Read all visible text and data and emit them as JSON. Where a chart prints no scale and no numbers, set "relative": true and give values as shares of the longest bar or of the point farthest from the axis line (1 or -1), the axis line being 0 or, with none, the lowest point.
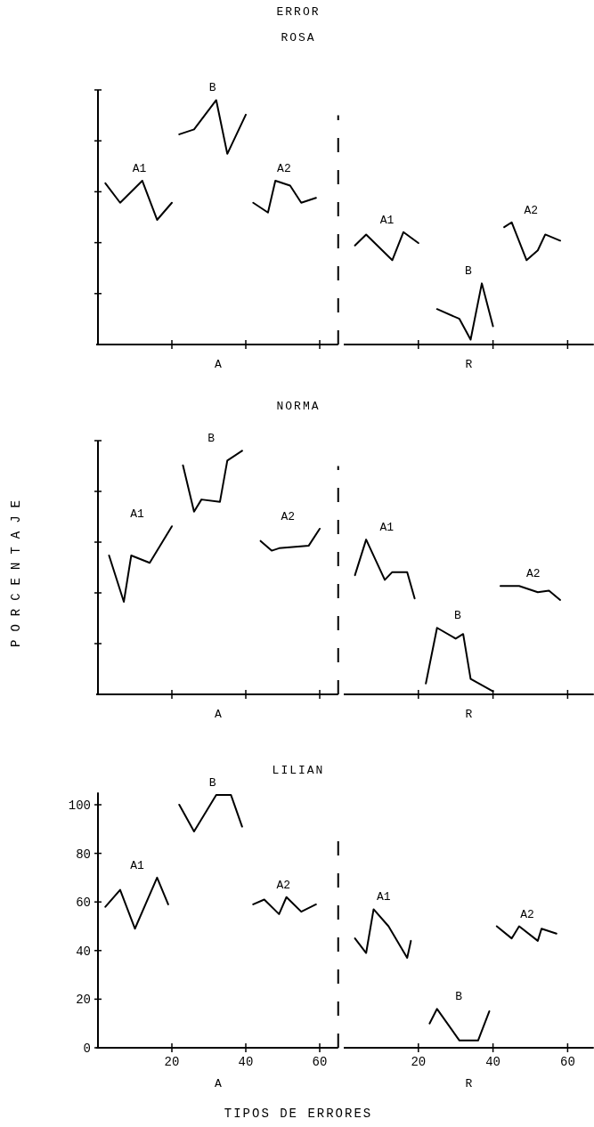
{
  "chart_data": [
    {
      "type": "line",
      "title": "ERROR",
      "subtitle": "ROSA",
      "xlabel": "A",
      "relative": true,
      "xlim": [
        0,
        65
      ],
      "xticks": [
        20,
        40,
        60
      ],
      "tick_labels": false,
      "marker": "none",
      "line_style": "solid",
      "series": [
        {
          "name": "A1",
          "color": "#000000",
          "x": [
            2,
            6,
            12,
            16,
            20
          ],
          "values": [
            0.66,
            0.58,
            0.67,
            0.51,
            0.58
          ]
        },
        {
          "name": "B",
          "color": "#000000",
          "x": [
            22,
            26,
            32,
            35,
            40
          ],
          "values": [
            0.86,
            0.88,
            1,
            0.78,
            0.94
          ]
        },
        {
          "name": "A2",
          "color": "#000000",
          "x": [
            42,
            46,
            48,
            52,
            55,
            59
          ],
          "values": [
            0.58,
            0.54,
            0.67,
            0.65,
            0.58,
            0.6
          ]
        }
      ]
    },
    {
      "type": "line",
      "xlabel": "R",
      "relative": true,
      "xlim": [
        0,
        67
      ],
      "xticks": [
        20,
        40,
        60
      ],
      "tick_labels": false,
      "marker": "none",
      "line_style": "solid",
      "series": [
        {
          "name": "A1",
          "color": "#000000",
          "x": [
            3,
            6,
            13,
            16,
            20
          ],
          "values": [
            0.81,
            0.9,
            0.69,
            0.92,
            0.83
          ]
        },
        {
          "name": "B",
          "color": "#000000",
          "x": [
            25,
            31,
            34,
            37,
            40
          ],
          "values": [
            0.29,
            0.21,
            0.04,
            0.5,
            0.15
          ]
        },
        {
          "name": "A2",
          "color": "#000000",
          "x": [
            43,
            45,
            49,
            52,
            54,
            58
          ],
          "values": [
            0.96,
            1,
            0.69,
            0.77,
            0.9,
            0.85
          ]
        }
      ]
    },
    {
      "type": "line",
      "title": "NORMA",
      "xlabel": "A",
      "relative": true,
      "xlim": [
        0,
        65
      ],
      "xticks": [
        20,
        40,
        60
      ],
      "tick_labels": false,
      "marker": "none",
      "line_style": "solid",
      "series": [
        {
          "name": "A1",
          "color": "#000000",
          "x": [
            3,
            7,
            9,
            14,
            20
          ],
          "values": [
            0.57,
            0.38,
            0.57,
            0.54,
            0.69
          ]
        },
        {
          "name": "B",
          "color": "#000000",
          "x": [
            23,
            26,
            28,
            33,
            35,
            39
          ],
          "values": [
            0.94,
            0.75,
            0.8,
            0.79,
            0.96,
            1
          ]
        },
        {
          "name": "A2",
          "color": "#000000",
          "x": [
            44,
            47,
            49,
            57,
            60
          ],
          "values": [
            0.63,
            0.59,
            0.6,
            0.61,
            0.68
          ]
        }
      ]
    },
    {
      "type": "line",
      "xlabel": "R",
      "relative": true,
      "xlim": [
        0,
        67
      ],
      "xticks": [
        20,
        40,
        60
      ],
      "tick_labels": false,
      "marker": "none",
      "line_style": "solid",
      "series": [
        {
          "name": "A1",
          "color": "#000000",
          "x": [
            3,
            6,
            11,
            13,
            17,
            19
          ],
          "values": [
            0.77,
            1,
            0.74,
            0.79,
            0.79,
            0.62
          ]
        },
        {
          "name": "B",
          "color": "#000000",
          "x": [
            22,
            25,
            30,
            32,
            34,
            40
          ],
          "values": [
            0.07,
            0.43,
            0.36,
            0.39,
            0.1,
            0.02
          ]
        },
        {
          "name": "A2",
          "color": "#000000",
          "x": [
            42,
            47,
            52,
            55,
            58
          ],
          "values": [
            0.7,
            0.7,
            0.66,
            0.67,
            0.61
          ]
        }
      ]
    },
    {
      "type": "line",
      "title": "LILIAN",
      "xlabel": "A",
      "annotations": [
        "PORCENTAJE",
        "TIPOS DE ERRORES"
      ],
      "xlim": [
        0,
        65
      ],
      "xticks": [
        20,
        40,
        60
      ],
      "ylim": [
        0,
        105
      ],
      "yticks": [
        0,
        20,
        40,
        60,
        80,
        100
      ],
      "marker": "none",
      "line_style": "solid",
      "series": [
        {
          "name": "A1",
          "color": "#000000",
          "x": [
            2,
            6,
            10,
            16,
            19
          ],
          "values": [
            58,
            65,
            49,
            70,
            59
          ]
        },
        {
          "name": "B",
          "color": "#000000",
          "x": [
            22,
            26,
            32,
            36,
            39
          ],
          "values": [
            100,
            89,
            104,
            104,
            91
          ]
        },
        {
          "name": "A2",
          "color": "#000000",
          "x": [
            42,
            45,
            49,
            51,
            55,
            59
          ],
          "values": [
            59,
            61,
            55,
            62,
            56,
            59
          ]
        }
      ]
    },
    {
      "type": "line",
      "xlabel": "R",
      "xlim": [
        0,
        67
      ],
      "xticks": [
        20,
        40,
        60
      ],
      "ylim": [
        0,
        100
      ],
      "yticks": [
        0,
        20,
        40,
        60,
        80,
        100
      ],
      "tick_labels": "x",
      "marker": "none",
      "line_style": "solid",
      "series": [
        {
          "name": "A1",
          "color": "#000000",
          "x": [
            3,
            6,
            8,
            12,
            17,
            18
          ],
          "values": [
            45,
            39,
            57,
            50,
            37,
            44
          ]
        },
        {
          "name": "B",
          "color": "#000000",
          "x": [
            23,
            25,
            31,
            36,
            39
          ],
          "values": [
            10,
            16,
            3,
            3,
            15
          ]
        },
        {
          "name": "A2",
          "color": "#000000",
          "x": [
            41,
            45,
            47,
            52,
            53,
            57
          ],
          "values": [
            50,
            45,
            50,
            44,
            49,
            47
          ]
        }
      ]
    }
  ]
}
